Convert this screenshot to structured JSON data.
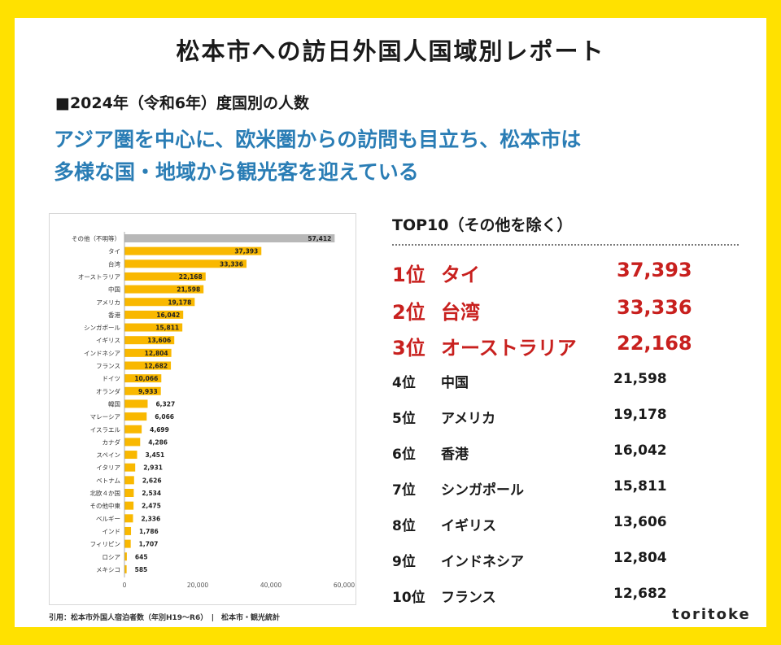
{
  "title": "松本市への訪日外国人国域別レポート",
  "subtitle": "■2024年（令和6年）度国別の人数",
  "headline": [
    "アジア圏を中心に、欧米圏からの訪問も目立ち、松本市は",
    "多様な国・地域から観光客を迎えている"
  ],
  "citation": "引用：松本市外国人宿泊者数（年別H19～R6）　|　松本市・観光統計",
  "brand": "toritoke",
  "top10": {
    "title": "TOP10（その他を除く）",
    "items": [
      {
        "rank": "1位",
        "name": "タイ",
        "value": "37,393"
      },
      {
        "rank": "2位",
        "name": "台湾",
        "value": "33,336"
      },
      {
        "rank": "3位",
        "name": "オーストラリア",
        "value": "22,168"
      },
      {
        "rank": "4位",
        "name": "中国",
        "value": "21,598"
      },
      {
        "rank": "5位",
        "name": "アメリカ",
        "value": "19,178"
      },
      {
        "rank": "6位",
        "name": "香港",
        "value": "16,042"
      },
      {
        "rank": "7位",
        "name": "シンガポール",
        "value": "15,811"
      },
      {
        "rank": "8位",
        "name": "イギリス",
        "value": "13,606"
      },
      {
        "rank": "9位",
        "name": "インドネシア",
        "value": "12,804"
      },
      {
        "rank": "10位",
        "name": "フランス",
        "value": "12,682"
      }
    ]
  },
  "colors": {
    "accent": "#ffe100",
    "headline": "#2a7db5",
    "top3": "#c8201e",
    "bar": "#f9b800",
    "bar_other": "#b8b8b8"
  },
  "chart_data": {
    "type": "bar",
    "orientation": "horizontal",
    "categories": [
      "その他（不明等）",
      "タイ",
      "台湾",
      "オーストラリア",
      "中国",
      "アメリカ",
      "香港",
      "シンガポール",
      "イギリス",
      "インドネシア",
      "フランス",
      "ドイツ",
      "オランダ",
      "韓国",
      "マレーシア",
      "イスラエル",
      "カナダ",
      "スペイン",
      "イタリア",
      "ベトナム",
      "北欧４か国",
      "その他中東",
      "ベルギー",
      "インド",
      "フィリピン",
      "ロシア",
      "メキシコ"
    ],
    "values": [
      57412,
      37393,
      33336,
      22168,
      21598,
      19178,
      16042,
      15811,
      13606,
      12804,
      12682,
      10066,
      9933,
      6327,
      6066,
      4699,
      4286,
      3451,
      2931,
      2626,
      2534,
      2475,
      2336,
      1786,
      1707,
      645,
      585
    ],
    "value_labels": [
      "57,412",
      "37,393",
      "33,336",
      "22,168",
      "21,598",
      "19,178",
      "16,042",
      "15,811",
      "13,606",
      "12,804",
      "12,682",
      "10,066",
      "9,933",
      "6,327",
      "6,066",
      "4,699",
      "4,286",
      "3,451",
      "2,931",
      "2,626",
      "2,534",
      "2,475",
      "2,336",
      "1,786",
      "1,707",
      "645",
      "585"
    ],
    "xlim": [
      0,
      60000
    ],
    "xticks": [
      0,
      20000,
      40000,
      60000
    ],
    "xtick_labels": [
      "0",
      "20,000",
      "40,000",
      "60,000"
    ],
    "grid": false,
    "legend": "none"
  }
}
